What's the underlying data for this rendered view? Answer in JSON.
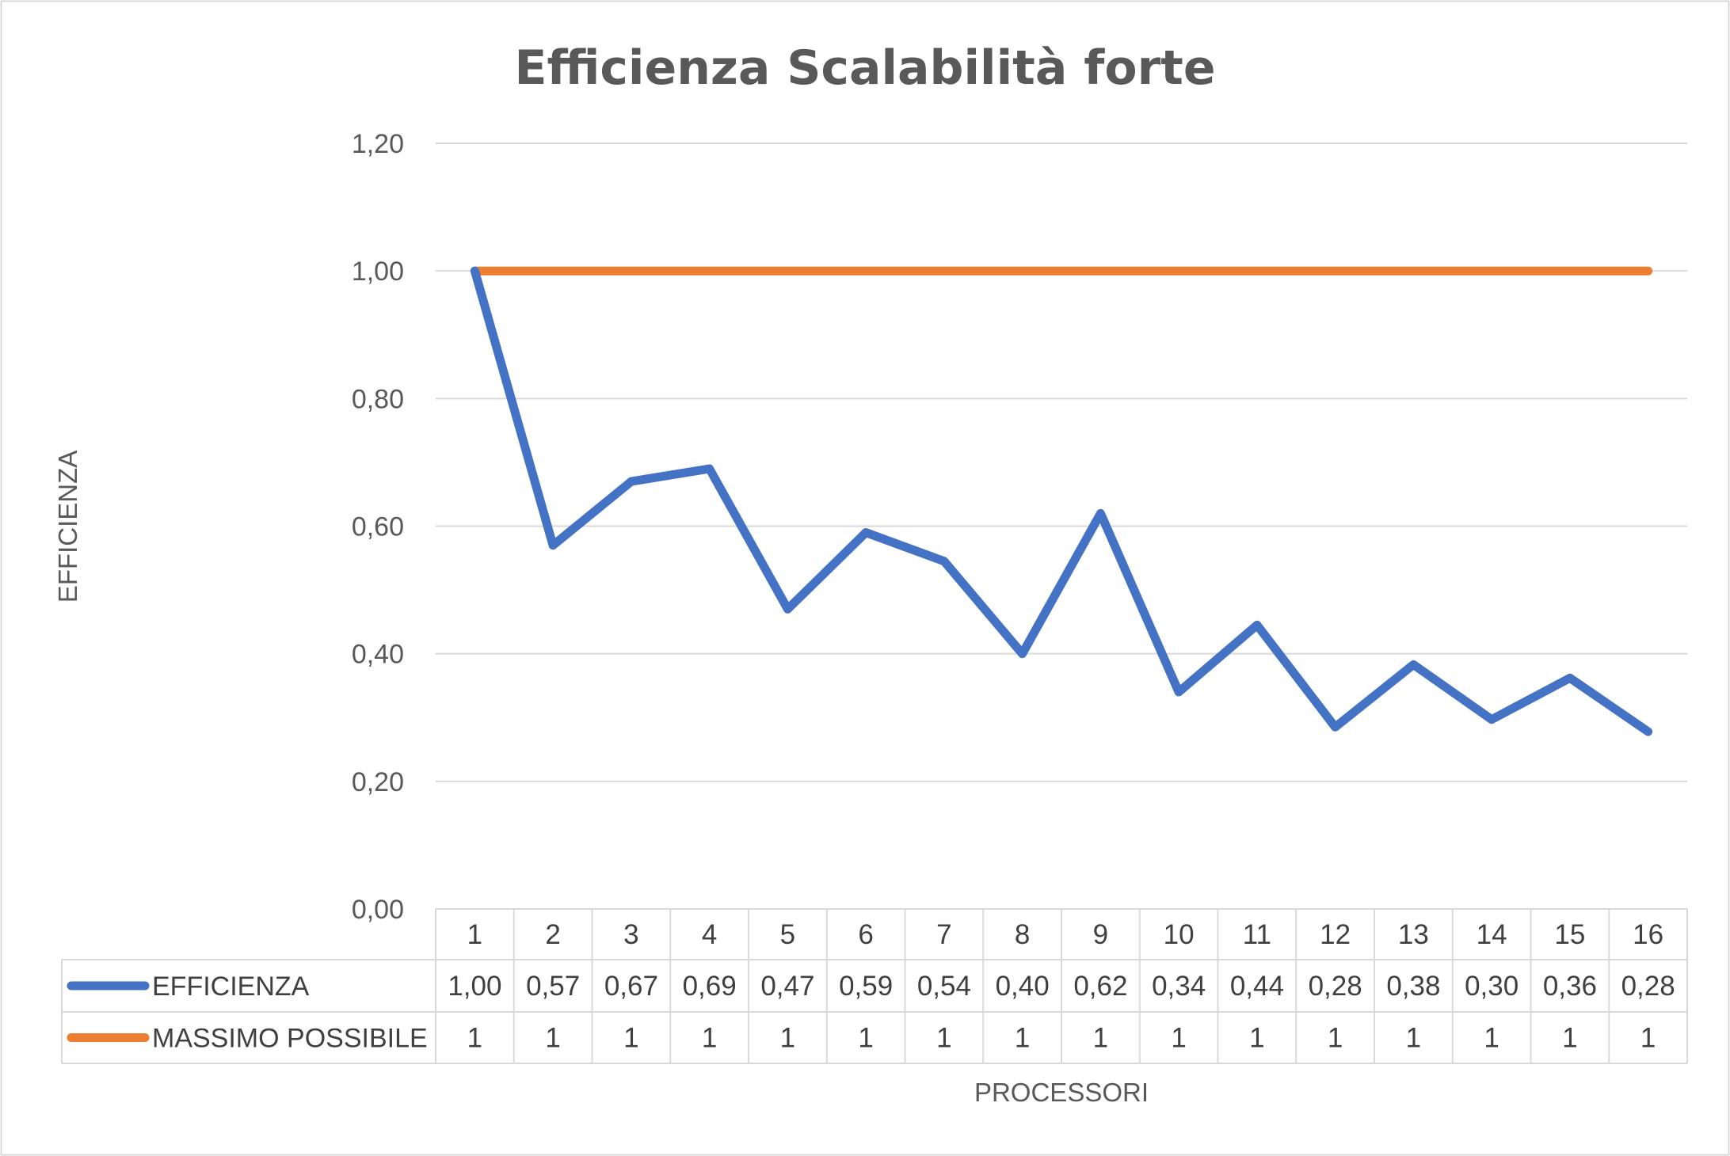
{
  "chart_data": {
    "type": "line",
    "title": "Efficienza Scalabilità forte",
    "xlabel": "PROCESSORI",
    "ylabel": "EFFICIENZA",
    "categories": [
      "1",
      "2",
      "3",
      "4",
      "5",
      "6",
      "7",
      "8",
      "9",
      "10",
      "11",
      "12",
      "13",
      "14",
      "15",
      "16"
    ],
    "ylim": [
      0,
      1.2
    ],
    "yticks": [
      "0,00",
      "0,20",
      "0,40",
      "0,60",
      "0,80",
      "1,00",
      "1,20"
    ],
    "grid": true,
    "legend": "data-table",
    "series": [
      {
        "name": "EFFICIENZA",
        "color": "#4472c4",
        "values": [
          1.0,
          0.57,
          0.67,
          0.69,
          0.47,
          0.59,
          0.545,
          0.4,
          0.62,
          0.34,
          0.445,
          0.285,
          0.383,
          0.297,
          0.362,
          0.278
        ],
        "labels": [
          "1,00",
          "0,57",
          "0,67",
          "0,69",
          "0,47",
          "0,59",
          "0,54",
          "0,40",
          "0,62",
          "0,34",
          "0,44",
          "0,28",
          "0,38",
          "0,30",
          "0,36",
          "0,28"
        ]
      },
      {
        "name": "MASSIMO POSSIBILE",
        "color": "#ed7d31",
        "values": [
          1,
          1,
          1,
          1,
          1,
          1,
          1,
          1,
          1,
          1,
          1,
          1,
          1,
          1,
          1,
          1
        ],
        "labels": [
          "1",
          "1",
          "1",
          "1",
          "1",
          "1",
          "1",
          "1",
          "1",
          "1",
          "1",
          "1",
          "1",
          "1",
          "1",
          "1"
        ]
      }
    ]
  }
}
